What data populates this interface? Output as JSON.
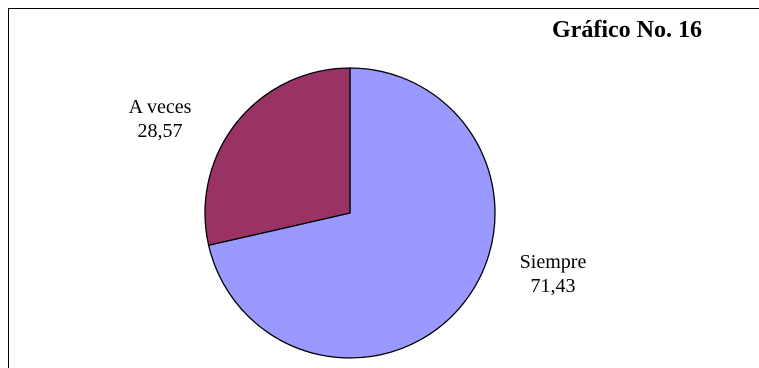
{
  "chart_data": {
    "type": "pie",
    "title": "Gráfico No. 16",
    "slices": [
      {
        "name": "Siempre",
        "value": 71.43,
        "value_text": "71,43",
        "color": "#9999FF"
      },
      {
        "name": "A veces",
        "value": 28.57,
        "value_text": "28,57",
        "color": "#993366"
      }
    ],
    "start_angle_deg": 0,
    "direction": "clockwise",
    "border_color": "#000000"
  }
}
